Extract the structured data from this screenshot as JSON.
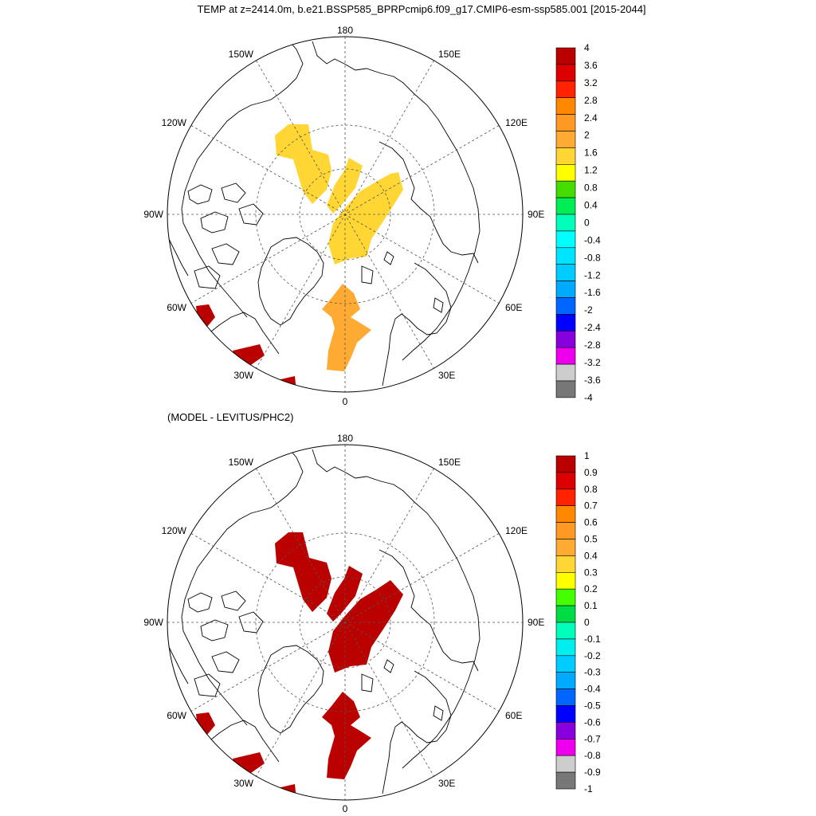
{
  "title": "TEMP at z=2414.0m, b.e21.BSSP585_BPRPcmip6.f09_g17.CMIP6-esm-ssp585.001 [2015-2044]",
  "subtitle": "(MODEL - LEVITUS/PHC2)",
  "longitude_labels": {
    "top": "180",
    "bottom": "0",
    "left": "90W",
    "right": "90E",
    "upper_left": "150W",
    "upper_right": "150E",
    "mid_left": "120W",
    "mid_right": "120E",
    "lower_mid_left": "60W",
    "lower_mid_right": "60E",
    "lower_left": "30W",
    "lower_right": "30E"
  },
  "colors": {
    "land_outline": "#000000",
    "grid": "#555555",
    "top_field_warm": "#ffd633",
    "top_field_orange": "#ffaa33",
    "top_field_red": "#bb0000",
    "bottom_field_red": "#bb0000"
  },
  "top_colorbar": {
    "labels": [
      "4",
      "3.6",
      "3.2",
      "2.8",
      "2.4",
      "2",
      "1.6",
      "1.2",
      "0.8",
      "0.4",
      "0",
      "-0.4",
      "-0.8",
      "-1.2",
      "-1.6",
      "-2",
      "-2.4",
      "-2.8",
      "-3.2",
      "-3.6",
      "-4"
    ],
    "colors": [
      "#bb0000",
      "#dd0000",
      "#ff2200",
      "#ff8800",
      "#ff9922",
      "#ffaa33",
      "#ffd633",
      "#ffff00",
      "#44dd00",
      "#00ee55",
      "#00ffbb",
      "#00ffff",
      "#00e5ff",
      "#00ccff",
      "#00aaff",
      "#0066ff",
      "#0000ff",
      "#8800dd",
      "#ee00ee",
      "#cccccc",
      "#777777"
    ]
  },
  "bottom_colorbar": {
    "labels": [
      "1",
      "0.9",
      "0.8",
      "0.7",
      "0.6",
      "0.5",
      "0.4",
      "0.3",
      "0.2",
      "0.1",
      "0",
      "-0.1",
      "-0.2",
      "-0.3",
      "-0.4",
      "-0.5",
      "-0.6",
      "-0.7",
      "-0.8",
      "-0.9",
      "-1"
    ],
    "colors": [
      "#bb0000",
      "#dd0000",
      "#ff2200",
      "#ff8800",
      "#ff9922",
      "#ffaa33",
      "#ffd633",
      "#ffff00",
      "#44ff00",
      "#00dd44",
      "#00ffbb",
      "#00eeee",
      "#00ccff",
      "#00aaff",
      "#0066ff",
      "#0000ff",
      "#8800dd",
      "#ee00ee",
      "#cccccc",
      "#777777"
    ]
  }
}
